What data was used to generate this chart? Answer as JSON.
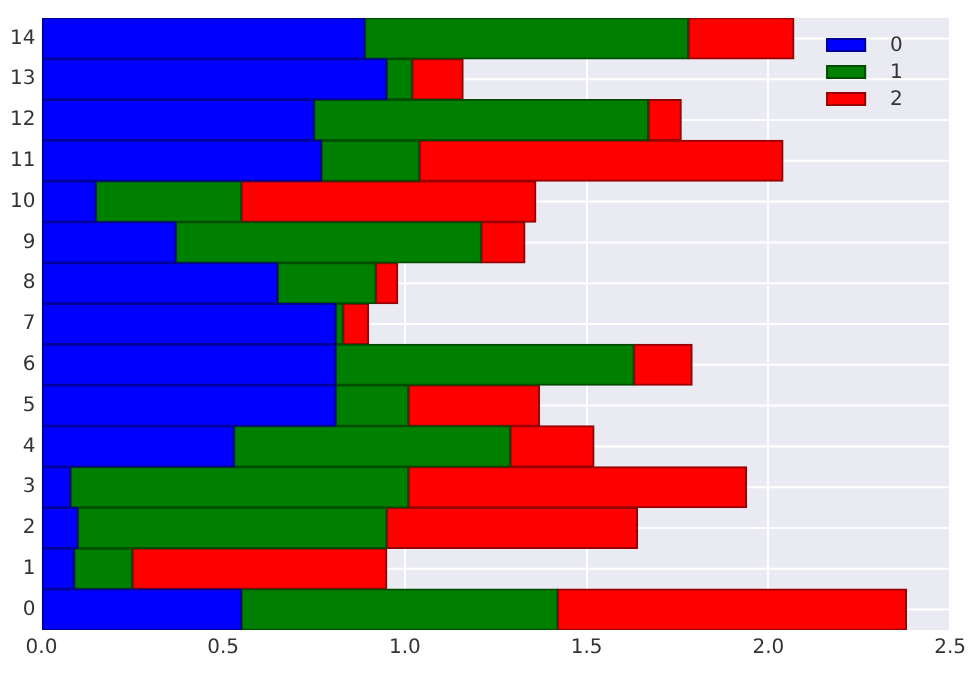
{
  "chart_data": {
    "type": "bar",
    "orientation": "horizontal",
    "stacked": true,
    "categories": [
      "14",
      "13",
      "12",
      "11",
      "10",
      "9",
      "8",
      "7",
      "6",
      "5",
      "4",
      "3",
      "2",
      "1",
      "0"
    ],
    "series": [
      {
        "name": "0",
        "color": "#0000ff",
        "values": [
          0.89,
          0.95,
          0.75,
          0.77,
          0.15,
          0.37,
          0.65,
          0.81,
          0.81,
          0.81,
          0.53,
          0.08,
          0.1,
          0.09,
          0.55
        ]
      },
      {
        "name": "1",
        "color": "#008000",
        "values": [
          0.89,
          0.07,
          0.92,
          0.27,
          0.4,
          0.84,
          0.27,
          0.02,
          0.82,
          0.2,
          0.76,
          0.93,
          0.85,
          0.16,
          0.87
        ]
      },
      {
        "name": "2",
        "color": "#ff0000",
        "values": [
          0.29,
          0.14,
          0.09,
          1.0,
          0.81,
          0.12,
          0.06,
          0.07,
          0.16,
          0.36,
          0.23,
          0.93,
          0.69,
          0.7,
          0.96
        ]
      }
    ],
    "xlim": [
      0,
      2.5
    ],
    "xticks": [
      {
        "value": 0,
        "label": "0.0"
      },
      0.5,
      {
        "value": 1,
        "label": "1.0"
      },
      1.5,
      {
        "value": 2,
        "label": "2.0"
      },
      2.5
    ],
    "grid": true,
    "legend": "top right"
  }
}
